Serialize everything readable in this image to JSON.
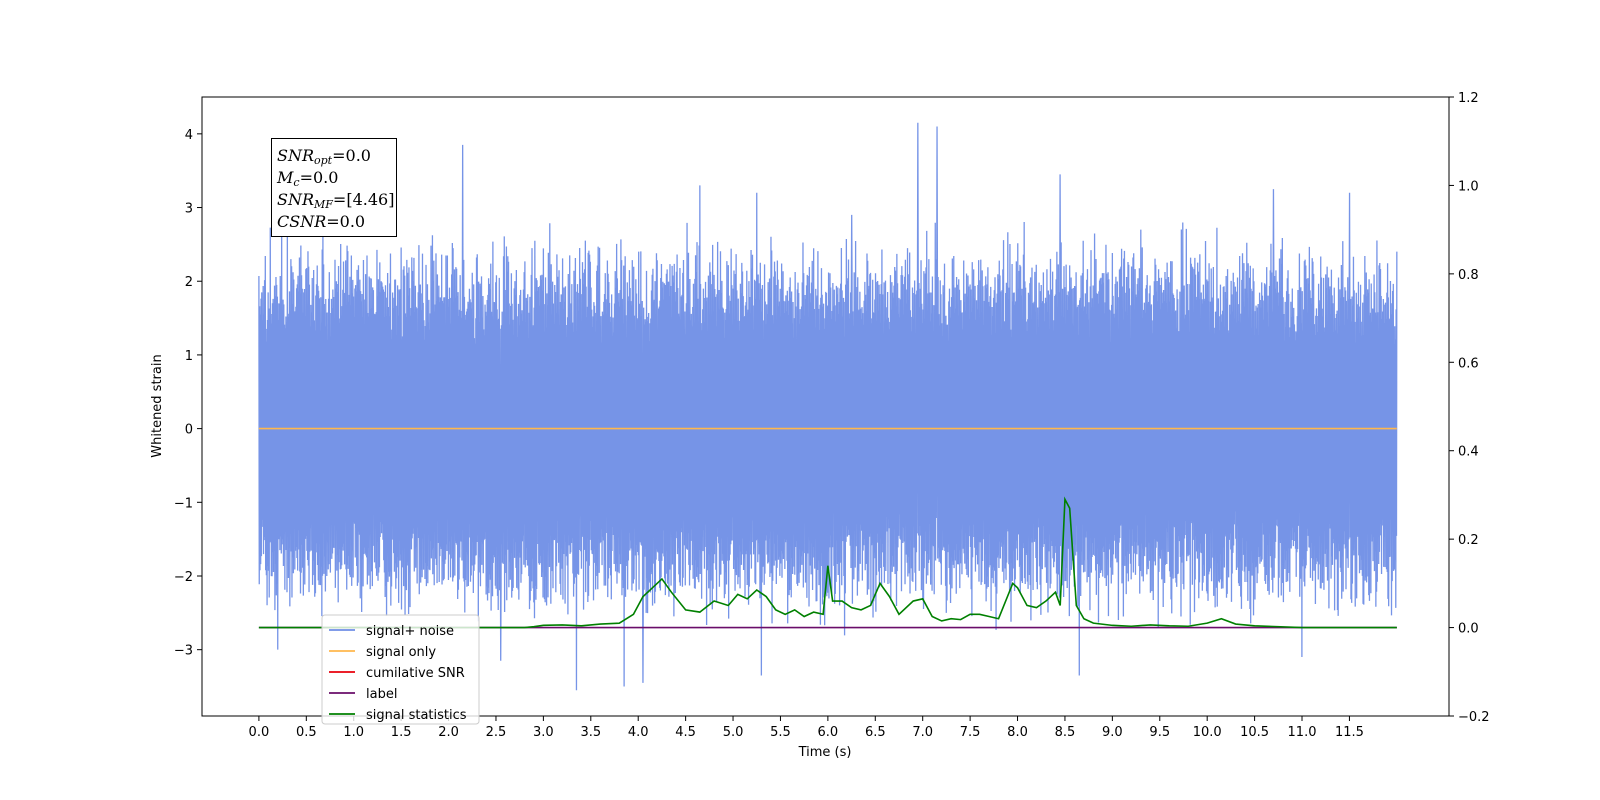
{
  "chart_data": {
    "type": "line",
    "xlabel": "Time (s)",
    "ylabel": "Whitened strain",
    "xlim": [
      -0.6,
      12.55
    ],
    "ylim": [
      -3.9,
      4.5
    ],
    "y2lim": [
      -0.2,
      1.2
    ],
    "x_ticks": [
      0.0,
      0.5,
      1.0,
      1.5,
      2.0,
      2.5,
      3.0,
      3.5,
      4.0,
      4.5,
      5.0,
      5.5,
      6.0,
      6.5,
      7.0,
      7.5,
      8.0,
      8.5,
      9.0,
      9.5,
      10.0,
      10.5,
      11.0,
      11.5
    ],
    "x_tick_labels": [
      "0.0",
      "0.5",
      "1.0",
      "1.5",
      "2.0",
      "2.5",
      "3.0",
      "3.5",
      "4.0",
      "4.5",
      "5.0",
      "5.5",
      "6.0",
      "6.5",
      "7.0",
      "7.5",
      "8.0",
      "8.5",
      "9.0",
      "9.5",
      "10.0",
      "10.5",
      "11.0",
      "11.5"
    ],
    "y_ticks": [
      -3,
      -2,
      -1,
      0,
      1,
      2,
      3,
      4
    ],
    "y_tick_labels": [
      "−3",
      "−2",
      "−1",
      "0",
      "1",
      "2",
      "3",
      "4"
    ],
    "y2_ticks": [
      -0.2,
      0.0,
      0.2,
      0.4,
      0.6,
      0.8,
      1.0,
      1.2
    ],
    "y2_tick_labels": [
      "−0.2",
      "0.0",
      "0.2",
      "0.4",
      "0.6",
      "0.8",
      "1.0",
      "1.2"
    ],
    "legend_position": "lower-left",
    "series": [
      {
        "name": "signal+ noise",
        "color": "#6f8ee6",
        "axis": "left",
        "x_range": [
          0.0,
          12.0
        ],
        "typical_range": [
          -2.0,
          2.0
        ],
        "peaks": [
          [
            0.3,
            2.65
          ],
          [
            2.15,
            3.85
          ],
          [
            4.65,
            3.3
          ],
          [
            5.25,
            3.2
          ],
          [
            6.25,
            2.9
          ],
          [
            6.95,
            4.15
          ],
          [
            7.15,
            4.1
          ],
          [
            8.45,
            3.45
          ],
          [
            9.3,
            2.7
          ],
          [
            10.7,
            3.25
          ],
          [
            11.5,
            3.2
          ],
          [
            3.35,
            -3.55
          ],
          [
            3.85,
            -3.5
          ],
          [
            4.05,
            -3.45
          ],
          [
            5.3,
            -3.35
          ],
          [
            8.65,
            -3.35
          ],
          [
            2.55,
            -3.15
          ],
          [
            11.0,
            -3.1
          ],
          [
            0.2,
            -3.0
          ]
        ]
      },
      {
        "name": "signal only",
        "color": "#ffb74d",
        "axis": "left",
        "x": [
          0.0,
          12.0
        ],
        "y": [
          0.0,
          0.0
        ]
      },
      {
        "name": "cumilative SNR",
        "color": "#e8000b",
        "axis": "right",
        "x": [],
        "y": []
      },
      {
        "name": "label",
        "color": "#6a0d6a",
        "axis": "right",
        "x": [
          0.0,
          12.0
        ],
        "y": [
          0.0,
          0.0
        ]
      },
      {
        "name": "signal statistics",
        "color": "#008000",
        "axis": "right",
        "x": [
          0.0,
          2.8,
          2.9,
          3.0,
          3.2,
          3.4,
          3.6,
          3.8,
          3.95,
          4.05,
          4.15,
          4.25,
          4.35,
          4.5,
          4.65,
          4.8,
          4.95,
          5.05,
          5.15,
          5.25,
          5.35,
          5.45,
          5.55,
          5.65,
          5.75,
          5.85,
          5.95,
          6.0,
          6.05,
          6.15,
          6.25,
          6.35,
          6.45,
          6.55,
          6.65,
          6.75,
          6.9,
          7.0,
          7.1,
          7.2,
          7.3,
          7.4,
          7.5,
          7.6,
          7.7,
          7.8,
          7.95,
          8.0,
          8.1,
          8.2,
          8.3,
          8.4,
          8.45,
          8.5,
          8.55,
          8.62,
          8.7,
          8.8,
          9.0,
          9.2,
          9.4,
          9.6,
          9.8,
          10.0,
          10.15,
          10.3,
          10.5,
          11.0,
          12.0
        ],
        "y": [
          0.0,
          0.0,
          0.002,
          0.005,
          0.006,
          0.004,
          0.008,
          0.01,
          0.03,
          0.07,
          0.09,
          0.11,
          0.08,
          0.04,
          0.035,
          0.06,
          0.05,
          0.075,
          0.065,
          0.085,
          0.07,
          0.04,
          0.03,
          0.04,
          0.025,
          0.035,
          0.03,
          0.14,
          0.06,
          0.06,
          0.045,
          0.04,
          0.05,
          0.1,
          0.07,
          0.03,
          0.06,
          0.065,
          0.025,
          0.015,
          0.02,
          0.018,
          0.03,
          0.03,
          0.025,
          0.02,
          0.1,
          0.09,
          0.05,
          0.045,
          0.06,
          0.08,
          0.05,
          0.29,
          0.27,
          0.05,
          0.02,
          0.01,
          0.005,
          0.003,
          0.006,
          0.004,
          0.003,
          0.01,
          0.02,
          0.008,
          0.004,
          0.0,
          0.0
        ]
      }
    ]
  },
  "annotation": {
    "snr_opt_base": "SNR",
    "snr_opt_sub": "opt",
    "snr_opt_value": "=0.0",
    "mc_base": "M",
    "mc_sub": "c",
    "mc_value": "=0.0",
    "snr_mf_base": "SNR",
    "snr_mf_sub": "MF",
    "snr_mf_value": "=[4.46]",
    "csnr_base": "CSNR",
    "csnr_value": "=0.0"
  }
}
